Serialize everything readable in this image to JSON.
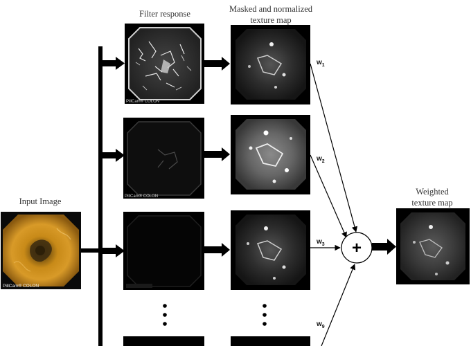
{
  "labels": {
    "filter_response": "Filter response",
    "masked_line1": "Masked and normalized",
    "masked_line2": "texture map",
    "input_image": "Input Image",
    "weighted_line1": "Weighted",
    "weighted_line2": "texture map",
    "plus_symbol": "+"
  },
  "weights": [
    {
      "base": "w",
      "sub": "1"
    },
    {
      "base": "w",
      "sub": "2"
    },
    {
      "base": "w",
      "sub": "3"
    },
    {
      "base": "w",
      "sub": "9"
    }
  ],
  "watermarks": {
    "input": "PillCam® COLON",
    "filter": "PillCam® COLON"
  },
  "ellipsis": "⋮"
}
